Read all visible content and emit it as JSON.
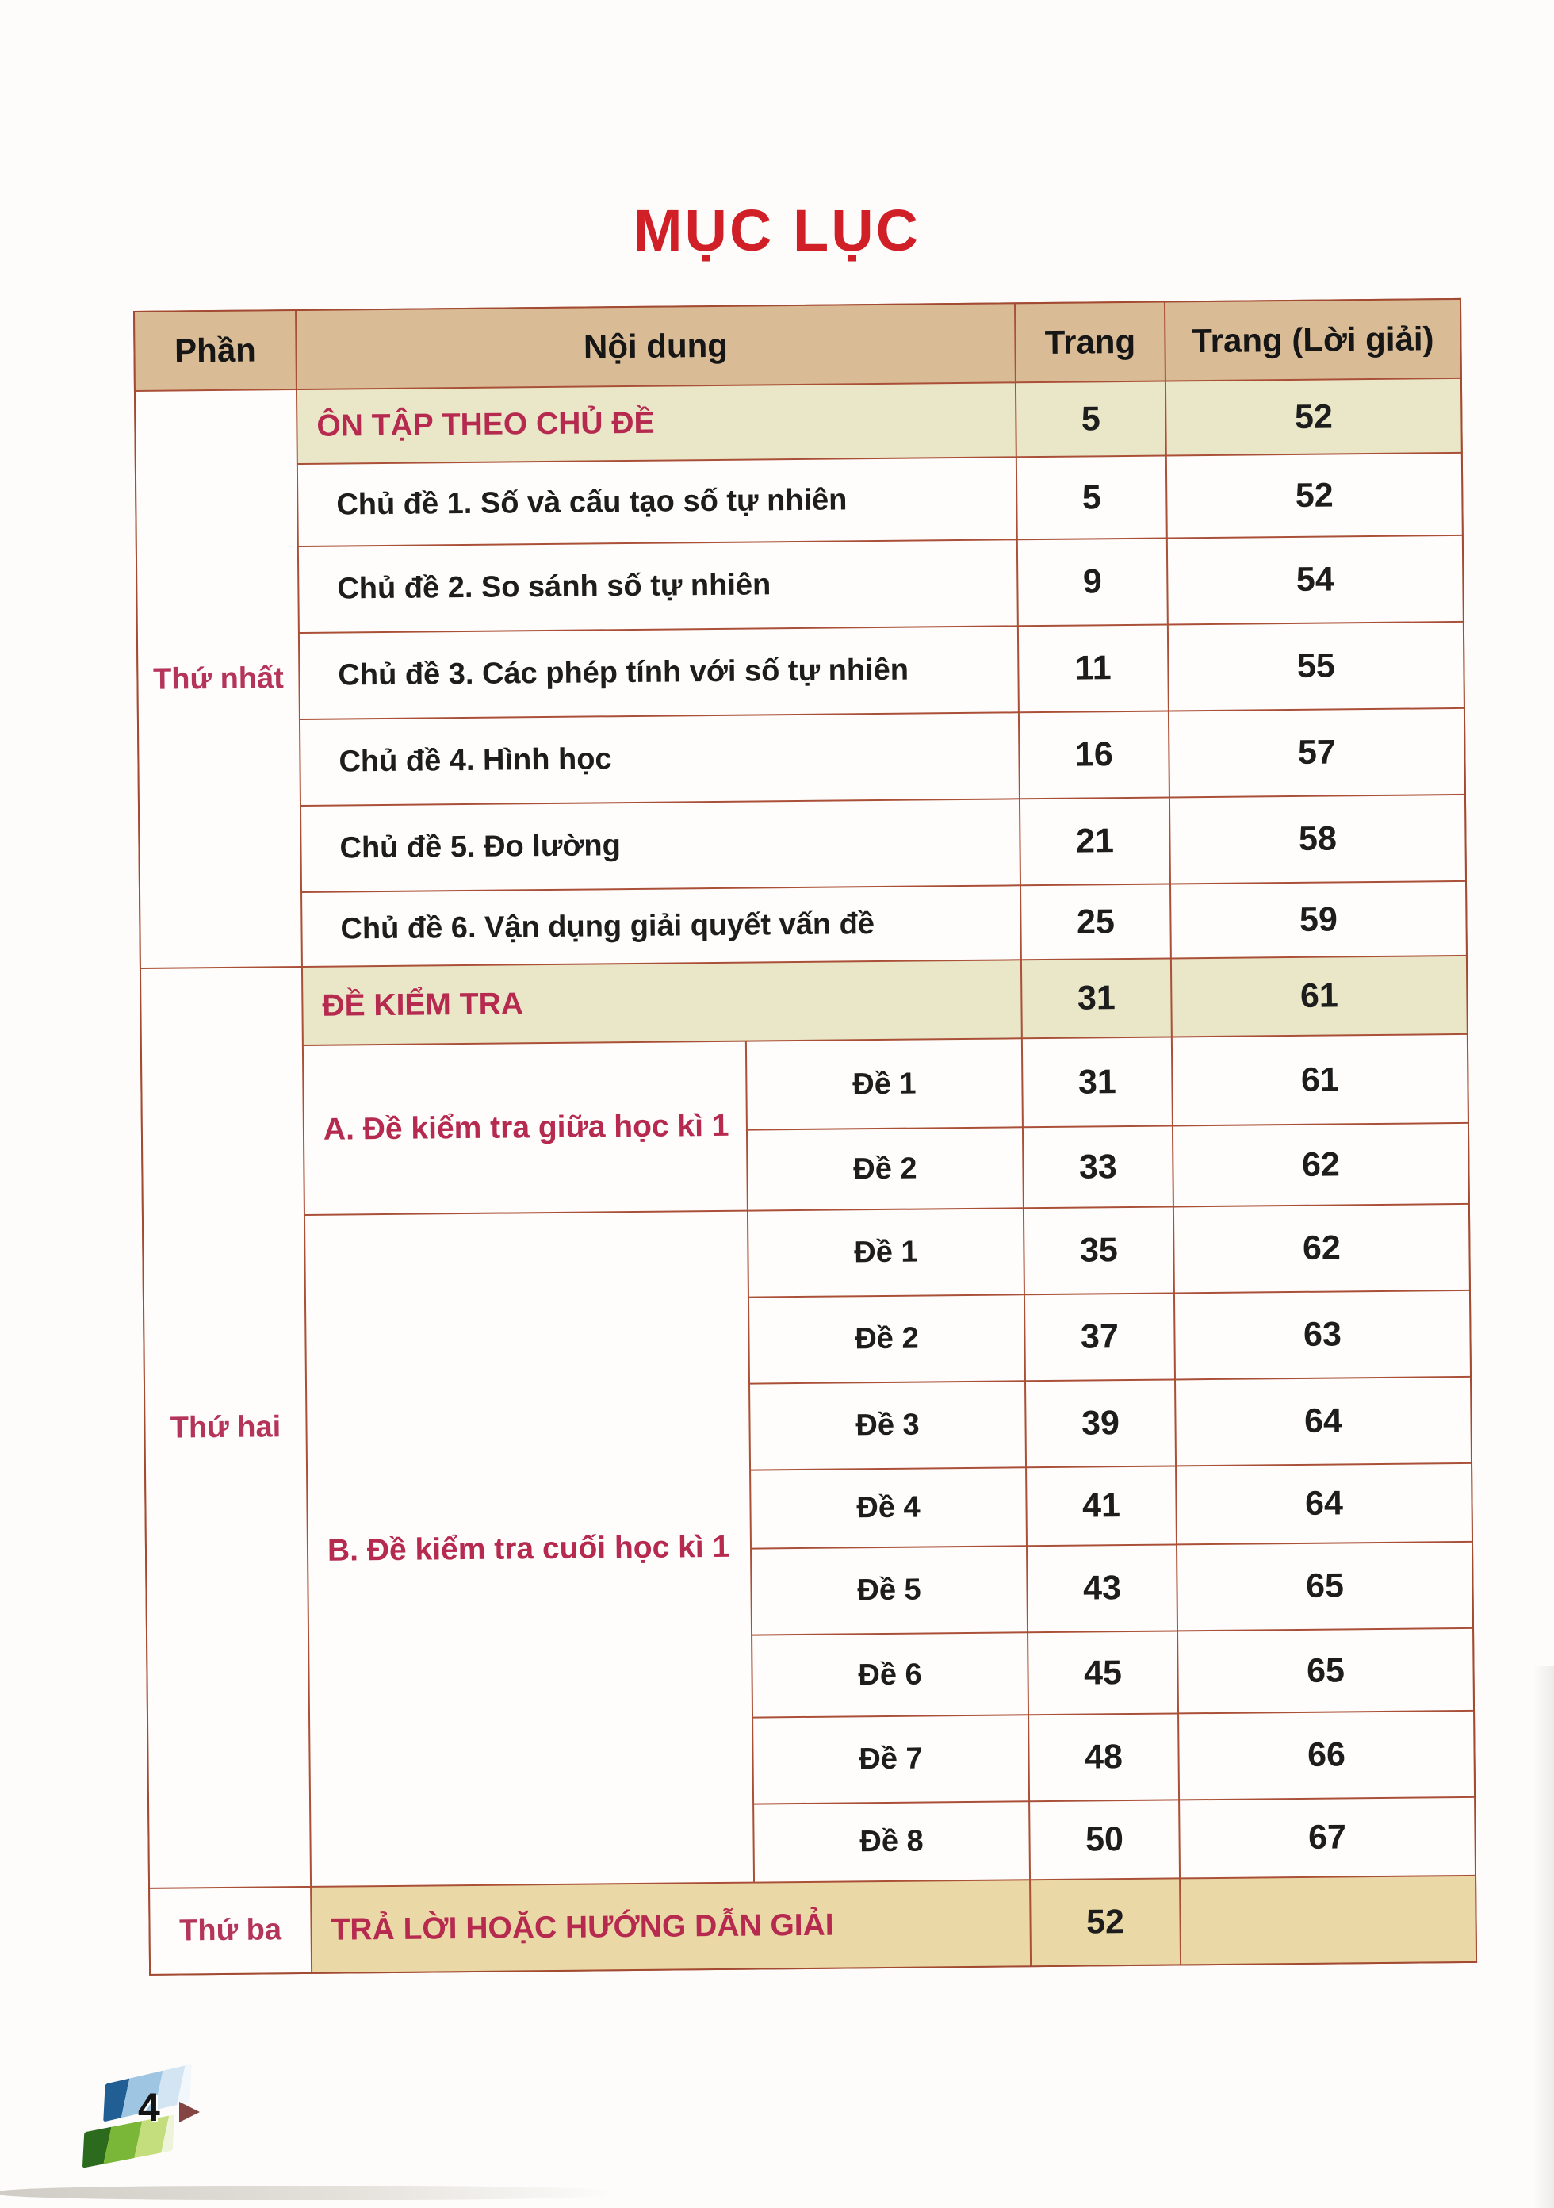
{
  "page": {
    "title": "MỤC LỤC",
    "number": "4"
  },
  "colors": {
    "title_red": "#d01f27",
    "crimson_text": "#b62a50",
    "header_bg": "#d9bb96",
    "section_row_bg": "#e9e7c8",
    "answer_row_bg": "#ead9a6",
    "grid_line": "#ab5038"
  },
  "toc": {
    "columns": [
      "Phần",
      "Nội dung",
      "Trang",
      "Trang (Lời giải)"
    ],
    "parts": [
      "Thứ nhất",
      "Thứ hai",
      "Thứ ba"
    ],
    "on_tap": {
      "label": "ÔN TẬP THEO CHỦ ĐỀ",
      "trang": "5",
      "loigiai": "52"
    },
    "chude": [
      {
        "label": "Chủ đề 1. Số và cấu tạo số tự nhiên",
        "trang": "5",
        "loigiai": "52"
      },
      {
        "label": "Chủ đề 2. So sánh số tự nhiên",
        "trang": "9",
        "loigiai": "54"
      },
      {
        "label": "Chủ đề 3. Các phép tính với số tự nhiên",
        "trang": "11",
        "loigiai": "55"
      },
      {
        "label": "Chủ đề 4. Hình học",
        "trang": "16",
        "loigiai": "57"
      },
      {
        "label": "Chủ đề 5. Đo lường",
        "trang": "21",
        "loigiai": "58"
      },
      {
        "label": "Chủ đề 6. Vận dụng giải quyết vấn đề",
        "trang": "25",
        "loigiai": "59"
      }
    ],
    "de_kiem_tra": {
      "label": "ĐỀ KIỂM TRA",
      "trang": "31",
      "loigiai": "61"
    },
    "group_a": {
      "label": "A. Đề kiểm tra giữa học kì 1",
      "des": [
        {
          "label": "Đề 1",
          "trang": "31",
          "loigiai": "61"
        },
        {
          "label": "Đề 2",
          "trang": "33",
          "loigiai": "62"
        }
      ]
    },
    "group_b": {
      "label": "B. Đề kiểm tra cuối học kì 1",
      "des": [
        {
          "label": "Đề 1",
          "trang": "35",
          "loigiai": "62"
        },
        {
          "label": "Đề 2",
          "trang": "37",
          "loigiai": "63"
        },
        {
          "label": "Đề 3",
          "trang": "39",
          "loigiai": "64"
        },
        {
          "label": "Đề 4",
          "trang": "41",
          "loigiai": "64"
        },
        {
          "label": "Đề 5",
          "trang": "43",
          "loigiai": "65"
        },
        {
          "label": "Đề 6",
          "trang": "45",
          "loigiai": "65"
        },
        {
          "label": "Đề 7",
          "trang": "48",
          "loigiai": "66"
        },
        {
          "label": "Đề 8",
          "trang": "50",
          "loigiai": "67"
        }
      ]
    },
    "tra_loi": {
      "label": "TRẢ LỜI HOẶC HƯỚNG DẪN GIẢI",
      "trang": "52",
      "loigiai": ""
    }
  }
}
